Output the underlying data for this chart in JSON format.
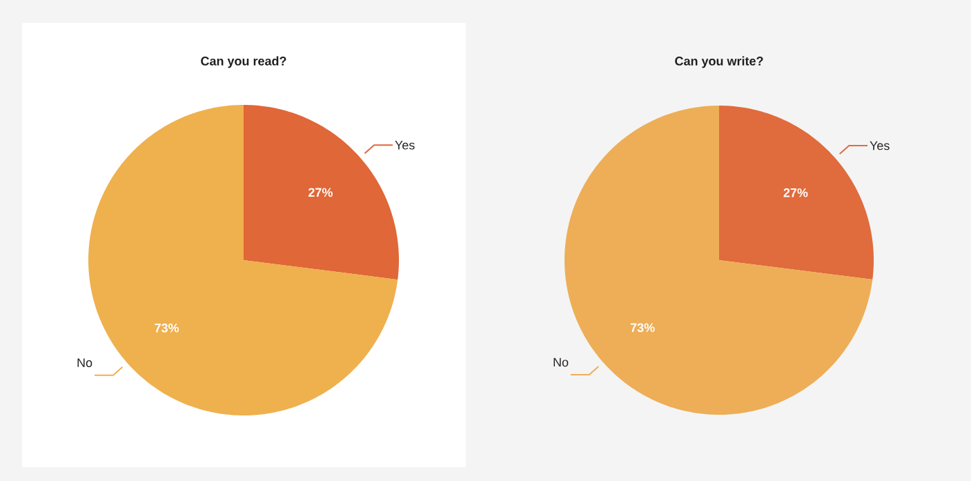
{
  "chart_data": [
    {
      "type": "pie",
      "title": "Can you read?",
      "categories": [
        "Yes",
        "No"
      ],
      "values": [
        27,
        73
      ],
      "colors": [
        "#e06737",
        "#efb04e"
      ],
      "value_labels": [
        "27%",
        "73%"
      ]
    },
    {
      "type": "pie",
      "title": "Can you write?",
      "categories": [
        "Yes",
        "No"
      ],
      "values": [
        27,
        73
      ],
      "colors": [
        "#e06b3c",
        "#edae57"
      ],
      "value_labels": [
        "27%",
        "73%"
      ]
    }
  ]
}
